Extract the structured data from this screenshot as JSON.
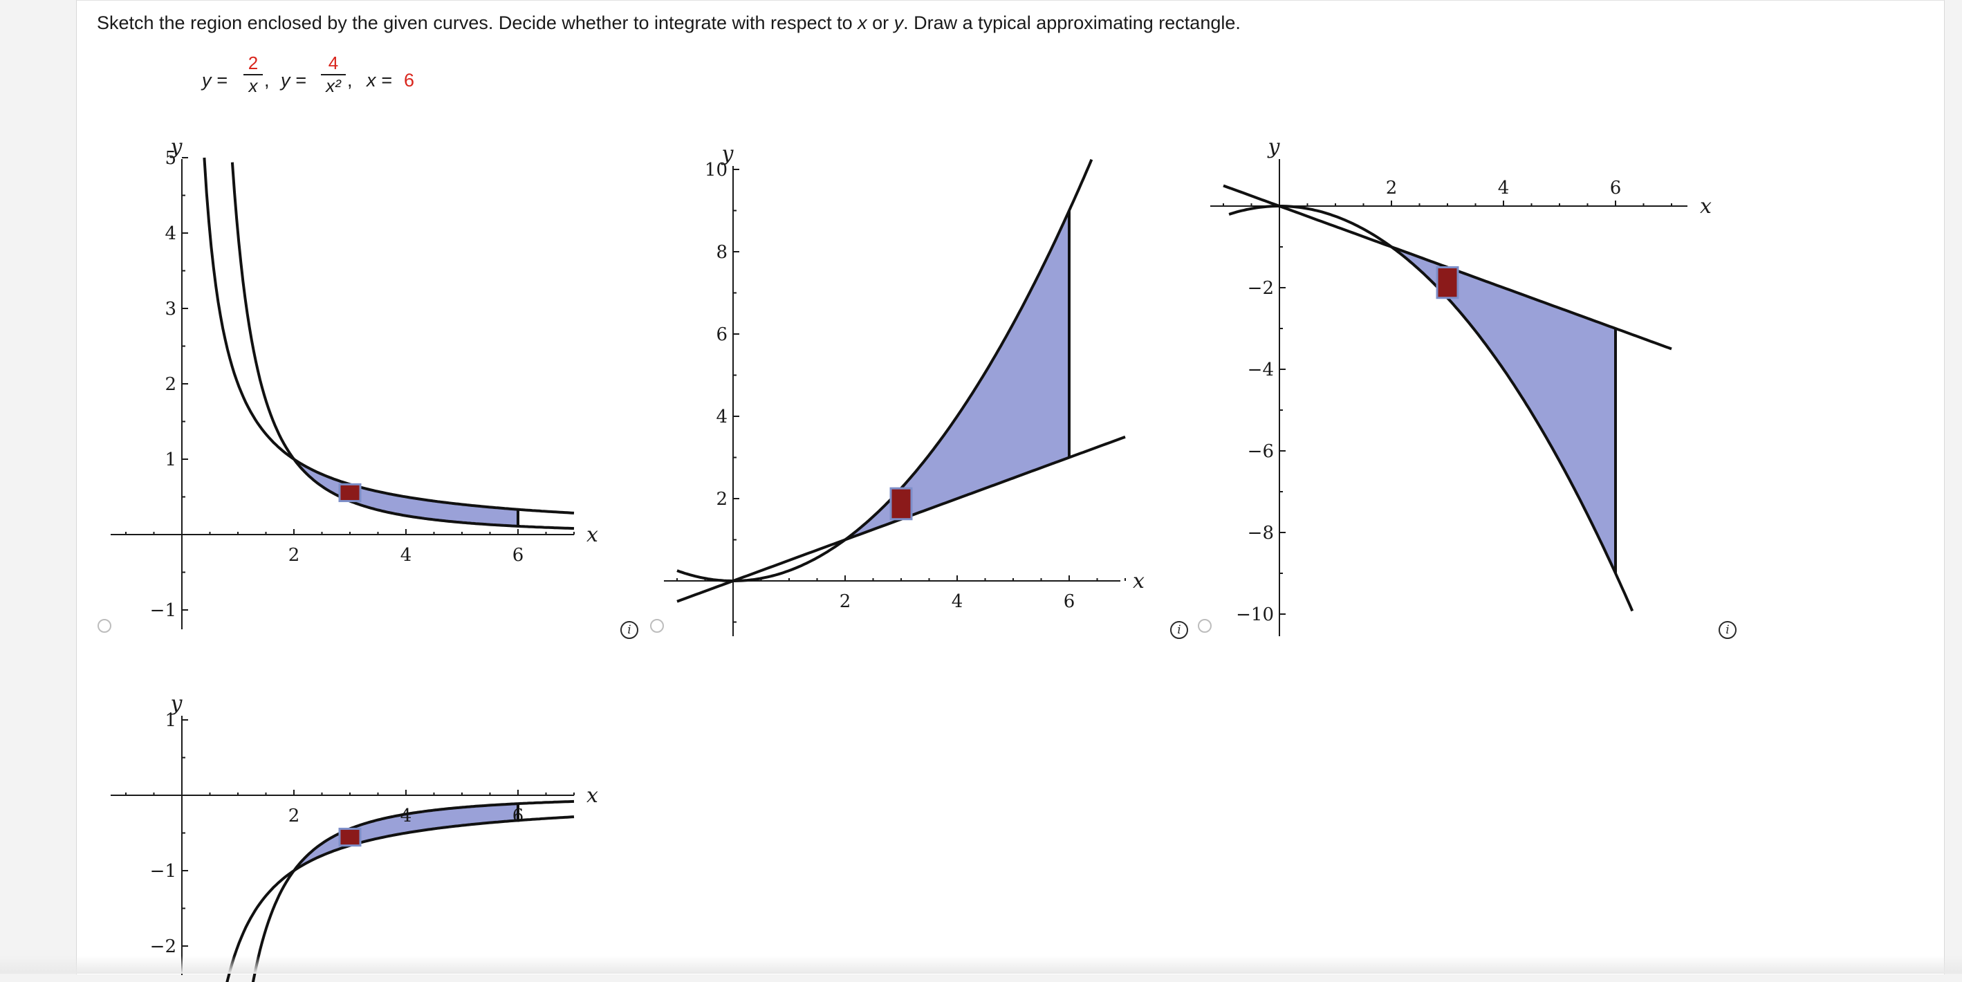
{
  "question": {
    "prefix": "Sketch the region enclosed by the given curves. Decide whether to integrate with respect to ",
    "var_x": "x",
    "mid": " or ",
    "var_y": "y",
    "suffix": ". Draw a typical approximating rectangle."
  },
  "equation": {
    "lhs1": "y =",
    "frac1_num": "2",
    "frac1_den": "x",
    "sep1": ",",
    "lhs2": "y =",
    "frac2_num": "4",
    "frac2_den": "x²",
    "sep2": ",",
    "lhs3": "x =",
    "x_value": "6"
  },
  "colors": {
    "region_fill": "#9aa1d8",
    "rectangle_fill": "#8b1a1a",
    "highlight_red": "#d9251c"
  },
  "choices": [
    {
      "id": "A",
      "selected": false,
      "info_icon": "info-icon"
    },
    {
      "id": "B",
      "selected": false,
      "info_icon": "info-icon"
    },
    {
      "id": "C",
      "selected": false,
      "info_icon": "info-icon"
    },
    {
      "id": "D",
      "selected": false,
      "info_icon": "info-icon"
    }
  ],
  "chart_data": [
    {
      "type": "line",
      "xlabel": "x",
      "ylabel": "y",
      "xlim": [
        -1.2,
        7
      ],
      "ylim": [
        -1.2,
        5.1
      ],
      "x_ticks": [
        2,
        4,
        6
      ],
      "y_ticks": [
        -1,
        1,
        2,
        3,
        4,
        5
      ],
      "x_tick_labels": [
        "2",
        "4",
        "6"
      ],
      "y_tick_labels": [
        "−1",
        "1",
        "2",
        "3",
        "4",
        "5"
      ],
      "curves": [
        "2/x",
        "4/x^2"
      ],
      "shaded_region": {
        "from_x": 2,
        "to_x": 6
      },
      "approximating_rectangle_x": 3
    },
    {
      "type": "line",
      "xlabel": "x",
      "ylabel": "y",
      "xlim": [
        -1.2,
        7.2
      ],
      "ylim": [
        -1.2,
        10
      ],
      "x_ticks": [
        2,
        4,
        6
      ],
      "y_ticks": [
        2,
        4,
        6,
        8,
        10
      ],
      "x_tick_labels": [
        "2",
        "4",
        "6"
      ],
      "y_tick_labels": [
        "2",
        "4",
        "6",
        "8",
        "10"
      ],
      "curves": [
        "x/2",
        "x^2/4"
      ],
      "shaded_region": {
        "from_x": 2,
        "to_x": 6
      },
      "approximating_rectangle_x": 3
    },
    {
      "type": "line",
      "xlabel": "x",
      "ylabel": "y",
      "xlim": [
        -1.2,
        7.2
      ],
      "ylim": [
        -10,
        0.5
      ],
      "x_ticks": [
        2,
        4,
        6
      ],
      "y_ticks": [
        -2,
        -4,
        -6,
        -8,
        -10
      ],
      "x_tick_labels": [
        "2",
        "4",
        "6"
      ],
      "y_tick_labels": [
        "−2",
        "−4",
        "−6",
        "−8",
        "−10"
      ],
      "curves": [
        "-x/2",
        "-x^2/4"
      ],
      "shaded_region": {
        "from_x": 2,
        "to_x": 6
      },
      "approximating_rectangle_x": 3
    },
    {
      "type": "line",
      "xlabel": "x",
      "ylabel": "y",
      "xlim": [
        -1.2,
        7
      ],
      "ylim": [
        -2.3,
        1
      ],
      "x_ticks": [
        2,
        4,
        6
      ],
      "y_ticks": [
        1,
        -1,
        -2
      ],
      "x_tick_labels": [
        "2",
        "4",
        "6"
      ],
      "y_tick_labels": [
        "1",
        "−1",
        "−2"
      ],
      "curves": [
        "-2/x",
        "-4/x^2"
      ],
      "shaded_region": {
        "from_x": 2,
        "to_x": 6
      },
      "approximating_rectangle_x": 3
    }
  ]
}
